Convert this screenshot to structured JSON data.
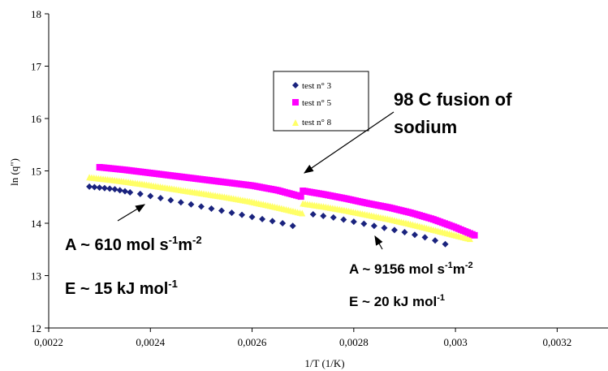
{
  "chart_data": {
    "type": "scatter",
    "xlabel": "1/T (1/K)",
    "ylabel": "ln (q\")",
    "xlim": [
      0.0022,
      0.0033
    ],
    "ylim": [
      12,
      18
    ],
    "x_ticks": [
      "0,0022",
      "0,0024",
      "0,0026",
      "0,0028",
      "0,003",
      "0,0032"
    ],
    "y_ticks": [
      "12",
      "13",
      "14",
      "15",
      "16",
      "17",
      "18"
    ],
    "grid": false,
    "legend_position": "top-center",
    "series": [
      {
        "name": "test n° 3",
        "marker": "diamond",
        "color": "#1a237e",
        "segments": [
          {
            "x": [
              0.00228,
              0.00229,
              0.0023,
              0.00231,
              0.00232,
              0.00233,
              0.00234,
              0.00235,
              0.00236,
              0.00238,
              0.0024,
              0.00242,
              0.00244,
              0.00246,
              0.00248,
              0.0025,
              0.00252,
              0.00254,
              0.00256,
              0.00258,
              0.0026,
              0.00262,
              0.00264,
              0.00266,
              0.00268
            ],
            "y": [
              14.7,
              14.69,
              14.68,
              14.67,
              14.66,
              14.65,
              14.63,
              14.61,
              14.59,
              14.56,
              14.52,
              14.48,
              14.44,
              14.4,
              14.36,
              14.32,
              14.28,
              14.24,
              14.2,
              14.16,
              14.12,
              14.08,
              14.04,
              14.0,
              13.95
            ]
          },
          {
            "x": [
              0.00272,
              0.00274,
              0.00276,
              0.00278,
              0.0028,
              0.00282,
              0.00284,
              0.00286,
              0.00288,
              0.0029,
              0.00292,
              0.00294,
              0.00296,
              0.00298
            ],
            "y": [
              14.17,
              14.14,
              14.11,
              14.07,
              14.03,
              13.99,
              13.95,
              13.91,
              13.87,
              13.83,
              13.78,
              13.73,
              13.67,
              13.6
            ]
          }
        ]
      },
      {
        "name": "test n° 5",
        "marker": "square",
        "color": "#ff00ff",
        "segments": [
          {
            "x_range": [
              0.0023,
              0.0027
            ],
            "y": [
              15.07,
              15.02,
              14.96,
              14.9,
              14.84,
              14.78,
              14.72,
              14.63,
              14.5
            ]
          },
          {
            "x_range": [
              0.0027,
              0.00304
            ],
            "y": [
              14.62,
              14.55,
              14.47,
              14.38,
              14.3,
              14.2,
              14.08,
              13.93,
              13.76
            ]
          }
        ]
      },
      {
        "name": "test n° 8",
        "marker": "triangle",
        "color": "#ffff66",
        "segments": [
          {
            "x_range": [
              0.00228,
              0.0027
            ],
            "y": [
              14.88,
              14.82,
              14.75,
              14.67,
              14.59,
              14.51,
              14.42,
              14.31,
              14.19
            ]
          },
          {
            "x_range": [
              0.0027,
              0.00303
            ],
            "y": [
              14.38,
              14.32,
              14.25,
              14.17,
              14.09,
              14.0,
              13.9,
              13.8,
              13.7
            ]
          }
        ]
      }
    ],
    "annotations": {
      "fusion_line1": "98  C fusion of",
      "fusion_line2": "sodium",
      "left_A_main": "A ~ 610 mol s",
      "left_A_sup1": "-1",
      "left_A_mid": "m",
      "left_A_sup2": "-2",
      "left_E_main": "E ~ 15 kJ mol",
      "left_E_sup": "-1",
      "right_A_main": "A ~ 9156 mol s",
      "right_A_sup1": "-1",
      "right_A_mid": "m",
      "right_A_sup2": "-2",
      "right_E_main": "E ~ 20 kJ mol",
      "right_E_sup": "-1"
    }
  }
}
